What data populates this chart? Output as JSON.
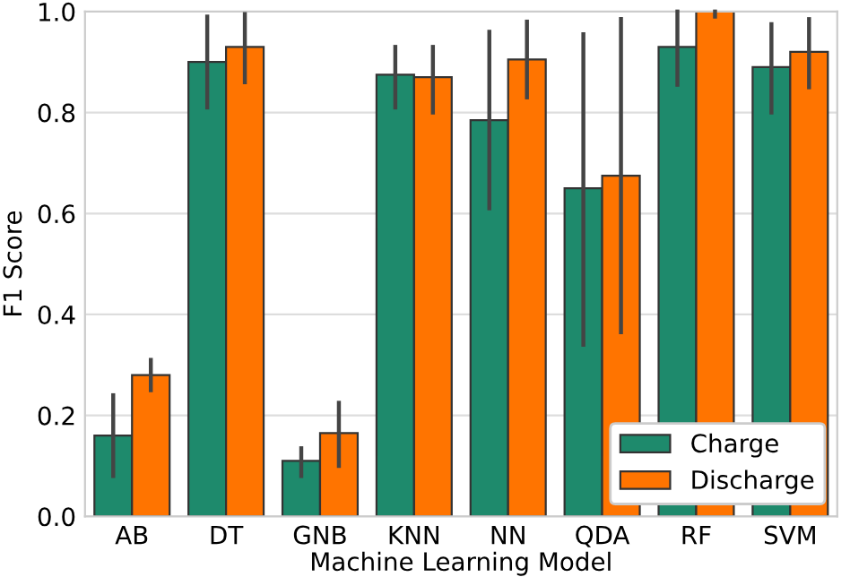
{
  "chart_data": {
    "type": "bar",
    "xlabel": "Machine Learning Model",
    "ylabel": "F1 Score",
    "categories": [
      "AB",
      "DT",
      "GNB",
      "KNN",
      "NN",
      "QDA",
      "RF",
      "SVM"
    ],
    "series": [
      {
        "name": "Charge",
        "color": "#1e8a6c",
        "values": [
          0.16,
          0.9,
          0.11,
          0.875,
          0.785,
          0.65,
          0.93,
          0.89
        ],
        "errors": [
          [
            0.08,
            0.24
          ],
          [
            0.81,
            0.99
          ],
          [
            0.08,
            0.135
          ],
          [
            0.81,
            0.93
          ],
          [
            0.61,
            0.96
          ],
          [
            0.34,
            0.955
          ],
          [
            0.855,
            1.0
          ],
          [
            0.8,
            0.975
          ]
        ]
      },
      {
        "name": "Discharge",
        "color": "#ff7400",
        "values": [
          0.28,
          0.93,
          0.165,
          0.87,
          0.905,
          0.675,
          1.0,
          0.92
        ],
        "errors": [
          [
            0.25,
            0.31
          ],
          [
            0.86,
            0.995
          ],
          [
            0.1,
            0.225
          ],
          [
            0.8,
            0.93
          ],
          [
            0.83,
            0.98
          ],
          [
            0.365,
            0.985
          ],
          [
            0.99,
            1.0
          ],
          [
            0.85,
            0.985
          ]
        ]
      }
    ],
    "ylim": [
      0,
      1
    ],
    "yticks": [
      {
        "value": 0,
        "label": "0.0"
      },
      0.2,
      0.4,
      0.6,
      0.8,
      {
        "value": 1,
        "label": "1.0"
      }
    ],
    "grid": "y",
    "legend": "bottom right"
  }
}
